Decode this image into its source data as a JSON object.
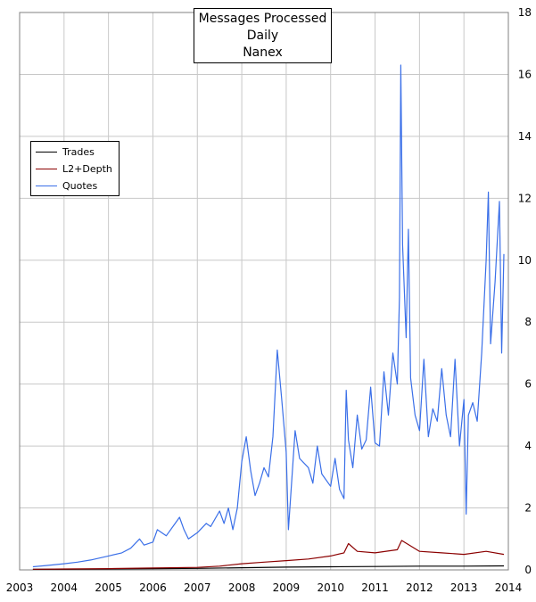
{
  "chart_data": {
    "type": "line",
    "title": [
      "Messages Processed",
      "Daily",
      "Nanex"
    ],
    "x_ticks": [
      "2003",
      "2004",
      "2005",
      "2006",
      "2007",
      "2008",
      "2009",
      "2010",
      "2011",
      "2012",
      "2013",
      "2014"
    ],
    "xlim": [
      2003,
      2014
    ],
    "y_ticks": [
      "0",
      "2",
      "4",
      "6",
      "8",
      "10",
      "12",
      "14",
      "16",
      "18"
    ],
    "ylim": [
      0,
      18
    ],
    "y_axis_side": "right",
    "grid": true,
    "legend_position": "top-left",
    "series": [
      {
        "name": "Trades",
        "color": "#000000",
        "points": [
          [
            2003.3,
            0.02
          ],
          [
            2004.0,
            0.02
          ],
          [
            2005.0,
            0.03
          ],
          [
            2006.0,
            0.04
          ],
          [
            2007.0,
            0.05
          ],
          [
            2008.0,
            0.07
          ],
          [
            2009.0,
            0.09
          ],
          [
            2010.0,
            0.1
          ],
          [
            2011.0,
            0.11
          ],
          [
            2012.0,
            0.12
          ],
          [
            2013.0,
            0.12
          ],
          [
            2013.9,
            0.13
          ]
        ]
      },
      {
        "name": "L2+Depth",
        "color": "#8b0000",
        "points": [
          [
            2003.3,
            0.02
          ],
          [
            2004.0,
            0.03
          ],
          [
            2005.0,
            0.04
          ],
          [
            2006.0,
            0.06
          ],
          [
            2007.0,
            0.08
          ],
          [
            2007.5,
            0.12
          ],
          [
            2008.0,
            0.2
          ],
          [
            2008.5,
            0.25
          ],
          [
            2009.0,
            0.3
          ],
          [
            2009.5,
            0.35
          ],
          [
            2010.0,
            0.45
          ],
          [
            2010.3,
            0.55
          ],
          [
            2010.4,
            0.85
          ],
          [
            2010.6,
            0.6
          ],
          [
            2011.0,
            0.55
          ],
          [
            2011.5,
            0.65
          ],
          [
            2011.6,
            0.95
          ],
          [
            2012.0,
            0.6
          ],
          [
            2012.5,
            0.55
          ],
          [
            2013.0,
            0.5
          ],
          [
            2013.5,
            0.6
          ],
          [
            2013.9,
            0.5
          ]
        ]
      },
      {
        "name": "Quotes",
        "color": "#3a6fe8",
        "points": [
          [
            2003.3,
            0.1
          ],
          [
            2003.6,
            0.14
          ],
          [
            2004.0,
            0.2
          ],
          [
            2004.3,
            0.25
          ],
          [
            2004.6,
            0.32
          ],
          [
            2005.0,
            0.45
          ],
          [
            2005.3,
            0.55
          ],
          [
            2005.5,
            0.7
          ],
          [
            2005.7,
            1.0
          ],
          [
            2005.8,
            0.8
          ],
          [
            2006.0,
            0.9
          ],
          [
            2006.1,
            1.3
          ],
          [
            2006.3,
            1.1
          ],
          [
            2006.5,
            1.5
          ],
          [
            2006.6,
            1.7
          ],
          [
            2006.7,
            1.3
          ],
          [
            2006.8,
            1.0
          ],
          [
            2007.0,
            1.2
          ],
          [
            2007.2,
            1.5
          ],
          [
            2007.3,
            1.4
          ],
          [
            2007.5,
            1.9
          ],
          [
            2007.6,
            1.5
          ],
          [
            2007.7,
            2.0
          ],
          [
            2007.8,
            1.3
          ],
          [
            2007.9,
            2.0
          ],
          [
            2008.0,
            3.5
          ],
          [
            2008.1,
            4.3
          ],
          [
            2008.2,
            3.2
          ],
          [
            2008.3,
            2.4
          ],
          [
            2008.4,
            2.8
          ],
          [
            2008.5,
            3.3
          ],
          [
            2008.6,
            3.0
          ],
          [
            2008.7,
            4.3
          ],
          [
            2008.8,
            7.1
          ],
          [
            2008.9,
            5.5
          ],
          [
            2009.0,
            3.8
          ],
          [
            2009.05,
            1.3
          ],
          [
            2009.2,
            4.5
          ],
          [
            2009.3,
            3.6
          ],
          [
            2009.5,
            3.3
          ],
          [
            2009.6,
            2.8
          ],
          [
            2009.7,
            4.0
          ],
          [
            2009.8,
            3.1
          ],
          [
            2010.0,
            2.7
          ],
          [
            2010.1,
            3.6
          ],
          [
            2010.2,
            2.6
          ],
          [
            2010.3,
            2.3
          ],
          [
            2010.35,
            5.8
          ],
          [
            2010.4,
            4.2
          ],
          [
            2010.5,
            3.3
          ],
          [
            2010.6,
            5.0
          ],
          [
            2010.7,
            3.9
          ],
          [
            2010.8,
            4.2
          ],
          [
            2010.9,
            5.9
          ],
          [
            2011.0,
            4.1
          ],
          [
            2011.1,
            4.0
          ],
          [
            2011.2,
            6.4
          ],
          [
            2011.3,
            5.0
          ],
          [
            2011.4,
            7.0
          ],
          [
            2011.5,
            6.0
          ],
          [
            2011.55,
            8.8
          ],
          [
            2011.58,
            16.3
          ],
          [
            2011.62,
            10.5
          ],
          [
            2011.7,
            7.5
          ],
          [
            2011.75,
            11.0
          ],
          [
            2011.8,
            6.2
          ],
          [
            2011.9,
            5.0
          ],
          [
            2012.0,
            4.5
          ],
          [
            2012.1,
            6.8
          ],
          [
            2012.2,
            4.3
          ],
          [
            2012.3,
            5.2
          ],
          [
            2012.4,
            4.8
          ],
          [
            2012.5,
            6.5
          ],
          [
            2012.6,
            5.0
          ],
          [
            2012.7,
            4.3
          ],
          [
            2012.8,
            6.8
          ],
          [
            2012.9,
            4.0
          ],
          [
            2013.0,
            5.5
          ],
          [
            2013.05,
            1.8
          ],
          [
            2013.1,
            5.0
          ],
          [
            2013.2,
            5.4
          ],
          [
            2013.3,
            4.8
          ],
          [
            2013.4,
            7.0
          ],
          [
            2013.5,
            10.0
          ],
          [
            2013.55,
            12.2
          ],
          [
            2013.6,
            7.3
          ],
          [
            2013.7,
            9.3
          ],
          [
            2013.8,
            11.9
          ],
          [
            2013.85,
            7.0
          ],
          [
            2013.9,
            10.2
          ]
        ]
      }
    ]
  }
}
